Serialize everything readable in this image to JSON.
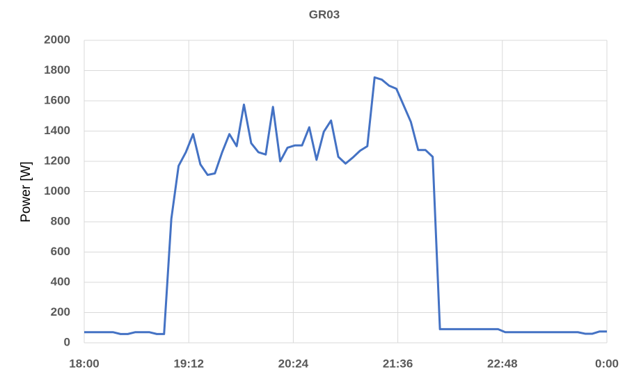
{
  "chart_data": {
    "type": "line",
    "title": "GR03",
    "y_label": "Power [W]",
    "x": [
      1080,
      1085,
      1090,
      1095,
      1100,
      1105,
      1110,
      1115,
      1120,
      1125,
      1130,
      1135,
      1140,
      1145,
      1150,
      1155,
      1160,
      1165,
      1170,
      1175,
      1180,
      1185,
      1190,
      1195,
      1200,
      1205,
      1210,
      1215,
      1220,
      1225,
      1230,
      1235,
      1240,
      1245,
      1250,
      1255,
      1260,
      1265,
      1270,
      1275,
      1280,
      1285,
      1290,
      1295,
      1300,
      1305,
      1310,
      1315,
      1320,
      1325,
      1330,
      1335,
      1340,
      1345,
      1350,
      1355,
      1360,
      1365,
      1370,
      1375,
      1380,
      1385,
      1390,
      1395,
      1400,
      1405,
      1410,
      1415,
      1420,
      1425,
      1430,
      1435,
      1440
    ],
    "series": [
      {
        "name": "GR03",
        "color": "#4472c4",
        "values": [
          70,
          70,
          70,
          70,
          70,
          58,
          58,
          70,
          70,
          70,
          58,
          58,
          820,
          1170,
          1260,
          1380,
          1180,
          1110,
          1120,
          1260,
          1380,
          1300,
          1575,
          1320,
          1260,
          1245,
          1560,
          1200,
          1290,
          1305,
          1305,
          1425,
          1210,
          1395,
          1470,
          1230,
          1185,
          1225,
          1270,
          1300,
          1755,
          1740,
          1700,
          1680,
          1570,
          1460,
          1275,
          1275,
          1230,
          90,
          90,
          90,
          90,
          90,
          90,
          90,
          90,
          90,
          70,
          70,
          70,
          70,
          70,
          70,
          70,
          70,
          70,
          70,
          70,
          60,
          60,
          75,
          75
        ]
      }
    ],
    "xlim": [
      1080,
      1440
    ],
    "xticks": [
      {
        "value": 1080,
        "label": "18:00"
      },
      {
        "value": 1152,
        "label": "19:12"
      },
      {
        "value": 1224,
        "label": "20:24"
      },
      {
        "value": 1296,
        "label": "21:36"
      },
      {
        "value": 1368,
        "label": "22:48"
      },
      {
        "value": 1440,
        "label": "0:00"
      }
    ],
    "ylim": [
      0,
      2000
    ],
    "yticks": [
      0,
      200,
      400,
      600,
      800,
      1000,
      1200,
      1400,
      1600,
      1800,
      2000
    ],
    "grid": true
  }
}
